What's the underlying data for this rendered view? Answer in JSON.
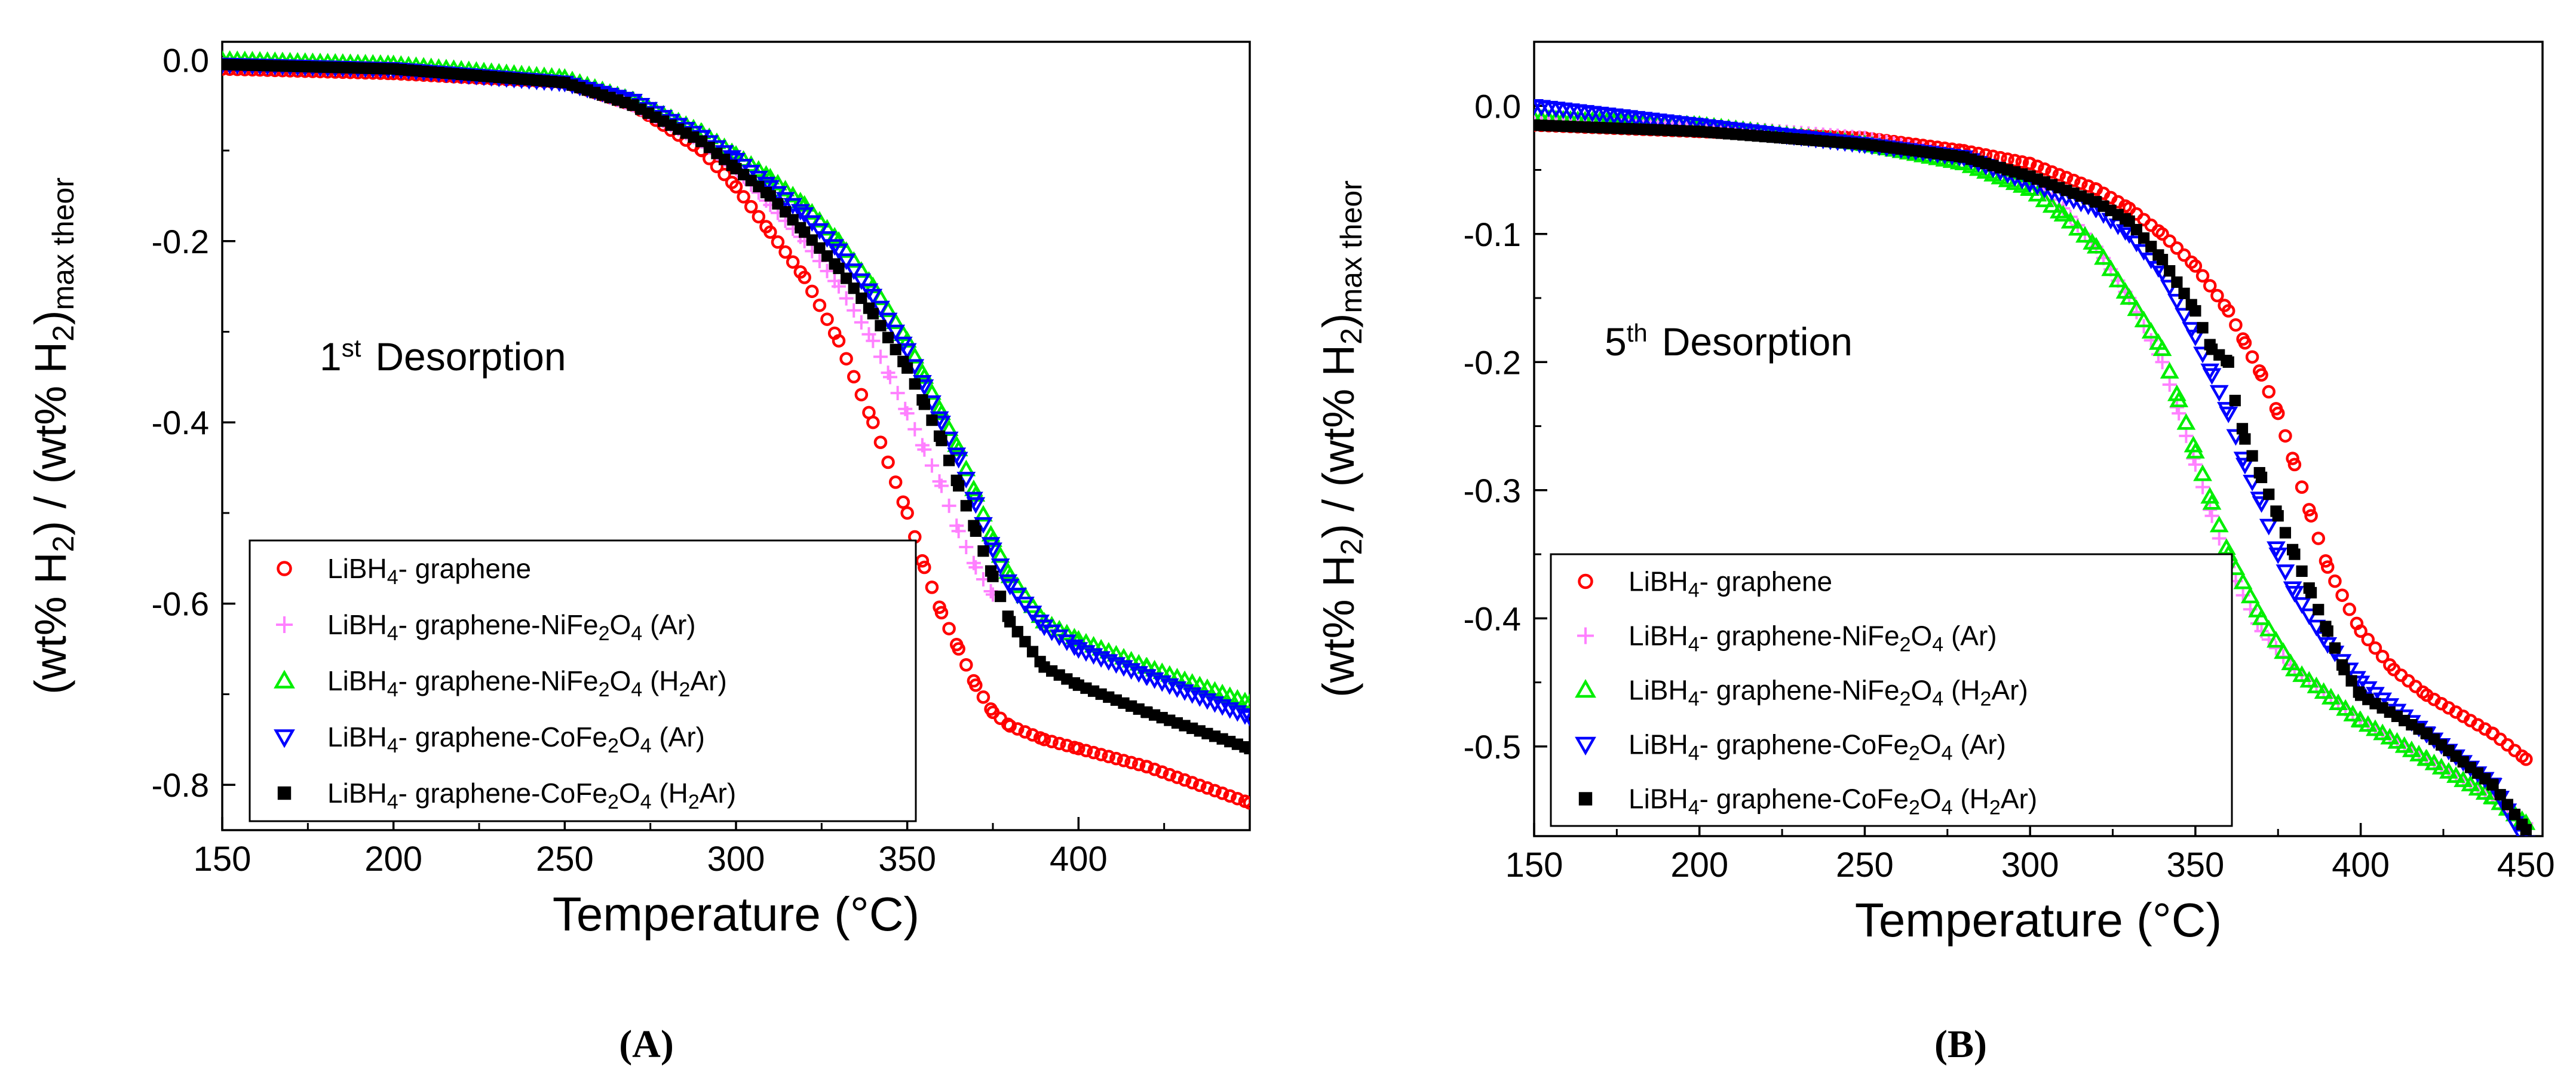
{
  "chart_data": [
    {
      "type": "scatter",
      "panel_label": "(A)",
      "annotation": {
        "base": "1",
        "sup": "st",
        "text": "Desorption"
      },
      "xlabel": "Temperature (°C)",
      "ylabel": {
        "p1": "(wt% H",
        "s1": "2",
        "p2": ") / (wt% H",
        "s2": "2",
        "p3": ")",
        "s3": "max theor"
      },
      "xlim": [
        150,
        450
      ],
      "ylim": [
        -0.85,
        0.02
      ],
      "xticks": [
        150,
        200,
        250,
        300,
        350,
        400
      ],
      "yticks": [
        0.0,
        -0.2,
        -0.4,
        -0.6,
        -0.8
      ],
      "legend_position": "bottom-left",
      "series": [
        {
          "key": "graphene",
          "name": "LiBH4- graphene",
          "marker": "circle",
          "color": "#ff0000",
          "points": [
            [
              150,
              -0.01
            ],
            [
              200,
              -0.015
            ],
            [
              250,
              -0.025
            ],
            [
              270,
              -0.05
            ],
            [
              290,
              -0.1
            ],
            [
              300,
              -0.14
            ],
            [
              310,
              -0.19
            ],
            [
              320,
              -0.24
            ],
            [
              330,
              -0.31
            ],
            [
              340,
              -0.4
            ],
            [
              350,
              -0.5
            ],
            [
              355,
              -0.56
            ],
            [
              360,
              -0.61
            ],
            [
              365,
              -0.65
            ],
            [
              370,
              -0.69
            ],
            [
              375,
              -0.72
            ],
            [
              380,
              -0.735
            ],
            [
              390,
              -0.75
            ],
            [
              400,
              -0.76
            ],
            [
              420,
              -0.78
            ],
            [
              450,
              -0.82
            ]
          ]
        },
        {
          "key": "nife-ar",
          "name": "LiBH4- graphene-NiFe2O4 (Ar)",
          "marker": "plus",
          "color": "#ff80ff",
          "points": [
            [
              150,
              -0.005
            ],
            [
              200,
              -0.01
            ],
            [
              250,
              -0.025
            ],
            [
              270,
              -0.05
            ],
            [
              290,
              -0.09
            ],
            [
              300,
              -0.12
            ],
            [
              310,
              -0.16
            ],
            [
              320,
              -0.2
            ],
            [
              330,
              -0.25
            ],
            [
              340,
              -0.31
            ],
            [
              345,
              -0.35
            ],
            [
              350,
              -0.39
            ],
            [
              355,
              -0.43
            ],
            [
              360,
              -0.47
            ],
            [
              365,
              -0.52
            ],
            [
              370,
              -0.56
            ],
            [
              375,
              -0.59
            ]
          ]
        },
        {
          "key": "nife-h2ar",
          "name": "LiBH4- graphene-NiFe2O4 (H2Ar)",
          "marker": "triangle-up",
          "color": "#00ee00",
          "points": [
            [
              150,
              0.0
            ],
            [
              200,
              -0.005
            ],
            [
              250,
              -0.02
            ],
            [
              270,
              -0.045
            ],
            [
              290,
              -0.08
            ],
            [
              300,
              -0.105
            ],
            [
              310,
              -0.13
            ],
            [
              320,
              -0.16
            ],
            [
              330,
              -0.2
            ],
            [
              340,
              -0.25
            ],
            [
              350,
              -0.31
            ],
            [
              355,
              -0.35
            ],
            [
              360,
              -0.39
            ],
            [
              365,
              -0.43
            ],
            [
              370,
              -0.48
            ],
            [
              375,
              -0.53
            ],
            [
              380,
              -0.57
            ],
            [
              390,
              -0.62
            ],
            [
              400,
              -0.64
            ],
            [
              420,
              -0.67
            ],
            [
              450,
              -0.71
            ]
          ]
        },
        {
          "key": "cofe-ar",
          "name": "LiBH4- graphene-CoFe2O4 (Ar)",
          "marker": "triangle-down",
          "color": "#0000ff",
          "points": [
            [
              150,
              -0.005
            ],
            [
              200,
              -0.01
            ],
            [
              250,
              -0.025
            ],
            [
              270,
              -0.045
            ],
            [
              290,
              -0.085
            ],
            [
              300,
              -0.11
            ],
            [
              310,
              -0.14
            ],
            [
              320,
              -0.17
            ],
            [
              330,
              -0.21
            ],
            [
              340,
              -0.26
            ],
            [
              350,
              -0.32
            ],
            [
              355,
              -0.36
            ],
            [
              360,
              -0.4
            ],
            [
              365,
              -0.44
            ],
            [
              370,
              -0.49
            ],
            [
              375,
              -0.54
            ],
            [
              380,
              -0.58
            ],
            [
              390,
              -0.625
            ],
            [
              400,
              -0.65
            ],
            [
              420,
              -0.68
            ],
            [
              450,
              -0.725
            ]
          ]
        },
        {
          "key": "cofe-h2ar",
          "name": "LiBH4- graphene-CoFe2O4 (H2Ar)",
          "marker": "square",
          "color": "#000000",
          "points": [
            [
              150,
              -0.005
            ],
            [
              200,
              -0.01
            ],
            [
              250,
              -0.025
            ],
            [
              270,
              -0.05
            ],
            [
              290,
              -0.09
            ],
            [
              300,
              -0.12
            ],
            [
              310,
              -0.15
            ],
            [
              320,
              -0.19
            ],
            [
              330,
              -0.23
            ],
            [
              340,
              -0.28
            ],
            [
              350,
              -0.34
            ],
            [
              355,
              -0.38
            ],
            [
              360,
              -0.42
            ],
            [
              365,
              -0.47
            ],
            [
              370,
              -0.52
            ],
            [
              375,
              -0.57
            ],
            [
              380,
              -0.62
            ],
            [
              390,
              -0.67
            ],
            [
              400,
              -0.69
            ],
            [
              420,
              -0.72
            ],
            [
              450,
              -0.76
            ]
          ]
        }
      ]
    },
    {
      "type": "scatter",
      "panel_label": "(B)",
      "annotation": {
        "base": "5",
        "sup": "th",
        "text": "Desorption"
      },
      "xlabel": "Temperature (°C)",
      "ylabel": {
        "p1": "(wt% H",
        "s1": "2",
        "p2": ") / (wt% H",
        "s2": "2",
        "p3": ")",
        "s3": "max theor"
      },
      "xlim": [
        150,
        455
      ],
      "ylim": [
        -0.57,
        0.05
      ],
      "xticks": [
        150,
        200,
        250,
        300,
        350,
        400,
        450
      ],
      "yticks": [
        0.0,
        -0.1,
        -0.2,
        -0.3,
        -0.4,
        -0.5
      ],
      "legend_position": "bottom-left",
      "series": [
        {
          "key": "graphene",
          "name": "LiBH4- graphene",
          "marker": "circle",
          "color": "#ff0000",
          "points": [
            [
              150,
              -0.015
            ],
            [
              200,
              -0.02
            ],
            [
              250,
              -0.025
            ],
            [
              280,
              -0.035
            ],
            [
              300,
              -0.045
            ],
            [
              320,
              -0.065
            ],
            [
              330,
              -0.08
            ],
            [
              340,
              -0.1
            ],
            [
              350,
              -0.125
            ],
            [
              360,
              -0.16
            ],
            [
              365,
              -0.185
            ],
            [
              370,
              -0.21
            ],
            [
              375,
              -0.24
            ],
            [
              380,
              -0.28
            ],
            [
              385,
              -0.32
            ],
            [
              390,
              -0.36
            ],
            [
              400,
              -0.41
            ],
            [
              410,
              -0.44
            ],
            [
              420,
              -0.46
            ],
            [
              440,
              -0.49
            ],
            [
              450,
              -0.51
            ]
          ]
        },
        {
          "key": "nife-ar",
          "name": "LiBH4- graphene-NiFe2O4 (Ar)",
          "marker": "plus",
          "color": "#ff80ff",
          "points": [
            [
              150,
              -0.01
            ],
            [
              200,
              -0.015
            ],
            [
              250,
              -0.025
            ],
            [
              280,
              -0.04
            ],
            [
              300,
              -0.06
            ],
            [
              310,
              -0.08
            ],
            [
              320,
              -0.11
            ],
            [
              330,
              -0.15
            ],
            [
              340,
              -0.2
            ],
            [
              345,
              -0.24
            ],
            [
              350,
              -0.28
            ],
            [
              355,
              -0.32
            ],
            [
              360,
              -0.36
            ],
            [
              370,
              -0.41
            ],
            [
              380,
              -0.44
            ],
            [
              400,
              -0.48
            ],
            [
              420,
              -0.51
            ],
            [
              440,
              -0.54
            ],
            [
              450,
              -0.56
            ]
          ]
        },
        {
          "key": "nife-h2ar",
          "name": "LiBH4- graphene-NiFe2O4 (H2Ar)",
          "marker": "triangle-up",
          "color": "#00ee00",
          "points": [
            [
              150,
              -0.01
            ],
            [
              200,
              -0.015
            ],
            [
              250,
              -0.03
            ],
            [
              280,
              -0.045
            ],
            [
              300,
              -0.065
            ],
            [
              310,
              -0.085
            ],
            [
              320,
              -0.11
            ],
            [
              330,
              -0.15
            ],
            [
              340,
              -0.19
            ],
            [
              345,
              -0.23
            ],
            [
              350,
              -0.27
            ],
            [
              355,
              -0.31
            ],
            [
              360,
              -0.35
            ],
            [
              370,
              -0.4
            ],
            [
              380,
              -0.44
            ],
            [
              400,
              -0.48
            ],
            [
              420,
              -0.51
            ],
            [
              440,
              -0.54
            ],
            [
              450,
              -0.56
            ]
          ]
        },
        {
          "key": "cofe-ar",
          "name": "LiBH4- graphene-CoFe2O4 (Ar)",
          "marker": "triangle-down",
          "color": "#0000ff",
          "points": [
            [
              150,
              0.0
            ],
            [
              200,
              -0.015
            ],
            [
              250,
              -0.03
            ],
            [
              280,
              -0.04
            ],
            [
              300,
              -0.06
            ],
            [
              320,
              -0.08
            ],
            [
              330,
              -0.1
            ],
            [
              340,
              -0.13
            ],
            [
              350,
              -0.18
            ],
            [
              355,
              -0.21
            ],
            [
              360,
              -0.24
            ],
            [
              365,
              -0.28
            ],
            [
              370,
              -0.31
            ],
            [
              375,
              -0.35
            ],
            [
              380,
              -0.38
            ],
            [
              390,
              -0.42
            ],
            [
              400,
              -0.45
            ],
            [
              420,
              -0.49
            ],
            [
              440,
              -0.53
            ],
            [
              450,
              -0.575
            ]
          ]
        },
        {
          "key": "cofe-h2ar",
          "name": "LiBH4- graphene-CoFe2O4 (H2Ar)",
          "marker": "square",
          "color": "#000000",
          "points": [
            [
              150,
              -0.015
            ],
            [
              200,
              -0.02
            ],
            [
              250,
              -0.03
            ],
            [
              280,
              -0.04
            ],
            [
              300,
              -0.055
            ],
            [
              320,
              -0.075
            ],
            [
              330,
              -0.09
            ],
            [
              340,
              -0.12
            ],
            [
              350,
              -0.16
            ],
            [
              355,
              -0.19
            ],
            [
              360,
              -0.2
            ],
            [
              362,
              -0.23
            ],
            [
              365,
              -0.26
            ],
            [
              370,
              -0.29
            ],
            [
              375,
              -0.32
            ],
            [
              380,
              -0.35
            ],
            [
              385,
              -0.38
            ],
            [
              390,
              -0.41
            ],
            [
              395,
              -0.44
            ],
            [
              400,
              -0.46
            ],
            [
              420,
              -0.49
            ],
            [
              440,
              -0.53
            ],
            [
              450,
              -0.565
            ]
          ]
        }
      ]
    }
  ]
}
